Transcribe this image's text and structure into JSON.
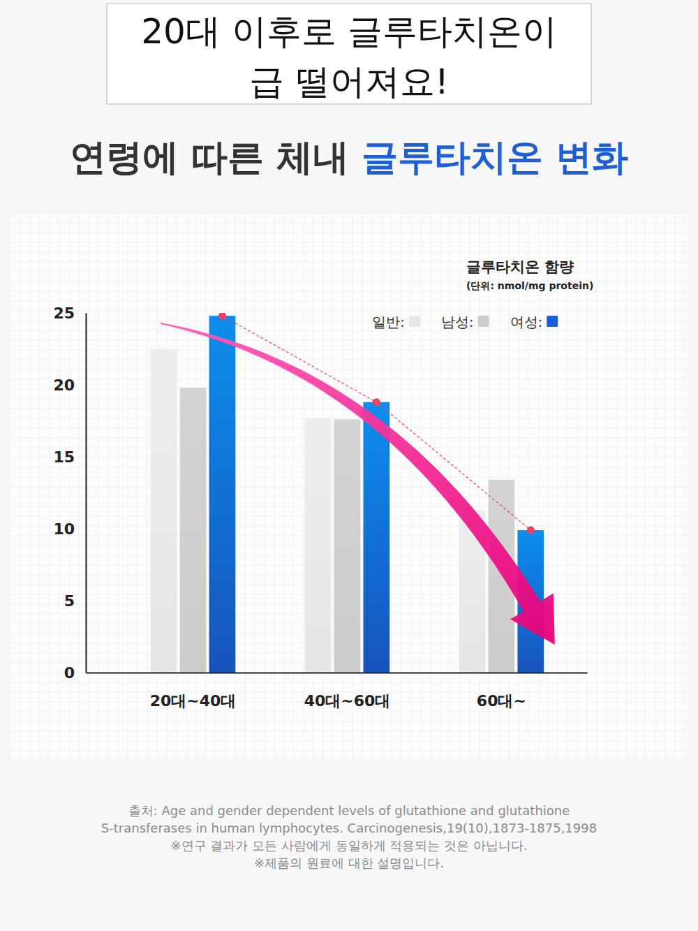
{
  "page": {
    "headline": [
      "20대 이후로 글루타치온이",
      "급 떨어져요!"
    ],
    "notes": [
      "출처: Age and gender dependent levels of glutathione and glutathione",
      "S-transferases in human lymphocytes. Carcinogenesis,19(10),1873-1875,1998",
      "※연구 결과가 모든 사람에게 동일하게 적용되는 것은 아닙니다.",
      "※제품의 원료에 대한 설명입니다."
    ]
  },
  "chart_data": {
    "type": "bar",
    "title": "연령에 따른 체내 글루타치온 변화",
    "title_highlight": "글루타치온 변화",
    "ylabel": "글루타치온 함량",
    "ylabel_unit": "(단위: nmol/mg protein)",
    "categories": [
      "20대~40대",
      "40대~60대",
      "60대~"
    ],
    "series": [
      {
        "name": "일반:",
        "color": "#e6e6e6",
        "values": [
          22.5,
          17.7,
          11.3
        ]
      },
      {
        "name": "남성:",
        "color": "#cccccc",
        "values": [
          19.8,
          17.6,
          13.4
        ]
      },
      {
        "name": "여성:",
        "color": "#1a5fd6",
        "values": [
          24.8,
          18.8,
          9.9
        ]
      }
    ],
    "ylim": [
      0,
      25
    ],
    "yticks": [
      0,
      5,
      10,
      15,
      20,
      25
    ],
    "grid": false,
    "legend": "upper right"
  }
}
